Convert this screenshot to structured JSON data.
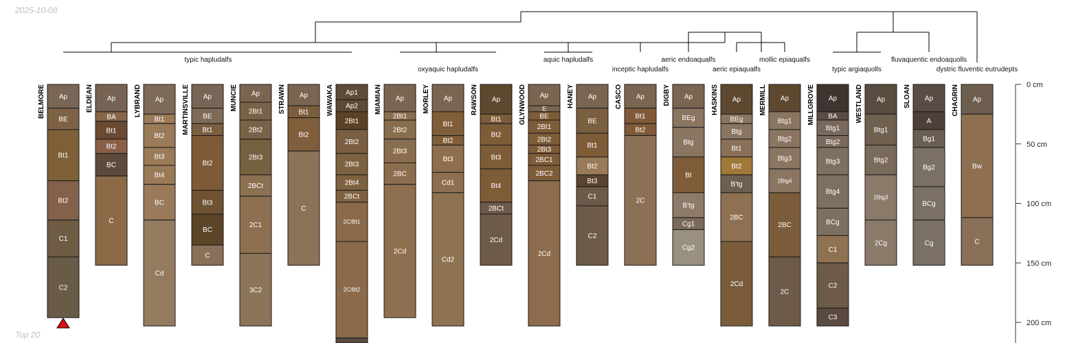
{
  "header": {
    "date": "2025-10-08",
    "footer": "Top 20"
  },
  "chart_data": {
    "type": "soil-profile-sketch",
    "depth_unit": "cm",
    "depth_ticks": [
      0,
      50,
      100,
      150,
      200
    ],
    "depth_tick_labels": [
      "0 cm",
      "50 cm",
      "100 cm",
      "150 cm",
      "200 cm"
    ],
    "depth_max": 218,
    "marker_profile": "BELMORE",
    "profiles": [
      {
        "name": "BELMORE",
        "horizons": [
          {
            "name": "Ap",
            "top": 0,
            "bottom": 20,
            "color": "#7A6656"
          },
          {
            "name": "BE",
            "top": 20,
            "bottom": 38,
            "color": "#7E6246"
          },
          {
            "name": "Bt1",
            "top": 38,
            "bottom": 81,
            "color": "#7D6038"
          },
          {
            "name": "Bt2",
            "top": 81,
            "bottom": 114,
            "color": "#83614A"
          },
          {
            "name": "C1",
            "top": 114,
            "bottom": 145,
            "color": "#6F5C45"
          },
          {
            "name": "C2",
            "top": 145,
            "bottom": 196,
            "color": "#6A5B48"
          }
        ]
      },
      {
        "name": "ELDEAN",
        "horizons": [
          {
            "name": "Ap",
            "top": 0,
            "bottom": 23,
            "color": "#766353"
          },
          {
            "name": "BA",
            "top": 23,
            "bottom": 31,
            "color": "#87664A"
          },
          {
            "name": "Bt1",
            "top": 31,
            "bottom": 46,
            "color": "#6B4A33"
          },
          {
            "name": "Bt2",
            "top": 46,
            "bottom": 58,
            "color": "#8A5E46"
          },
          {
            "name": "BC",
            "top": 58,
            "bottom": 77,
            "color": "#5D4A3A"
          },
          {
            "name": "C",
            "top": 77,
            "bottom": 152,
            "color": "#8C6A48"
          }
        ]
      },
      {
        "name": "LYBRAND",
        "horizons": [
          {
            "name": "Ap",
            "top": 0,
            "bottom": 25,
            "color": "#7E6A58"
          },
          {
            "name": "Bt1",
            "top": 25,
            "bottom": 33,
            "color": "#9A7A58"
          },
          {
            "name": "Bt2",
            "top": 33,
            "bottom": 53,
            "color": "#9A7A58"
          },
          {
            "name": "Bt3",
            "top": 53,
            "bottom": 68,
            "color": "#9B7A57"
          },
          {
            "name": "Bt4",
            "top": 68,
            "bottom": 84,
            "color": "#9A7A57"
          },
          {
            "name": "BC",
            "top": 84,
            "bottom": 114,
            "color": "#9A7A5A"
          },
          {
            "name": "Cd",
            "top": 114,
            "bottom": 203,
            "color": "#947A5F"
          }
        ]
      },
      {
        "name": "MARTINSVILLE",
        "horizons": [
          {
            "name": "Ap",
            "top": 0,
            "bottom": 20,
            "color": "#786555"
          },
          {
            "name": "BE",
            "top": 20,
            "bottom": 33,
            "color": "#7E6A56"
          },
          {
            "name": "Bt1",
            "top": 33,
            "bottom": 43,
            "color": "#7A6040"
          },
          {
            "name": "Bt2",
            "top": 43,
            "bottom": 89,
            "color": "#7E5A38"
          },
          {
            "name": "Bt3",
            "top": 89,
            "bottom": 109,
            "color": "#6E5232"
          },
          {
            "name": "BC",
            "top": 109,
            "bottom": 135,
            "color": "#5B4428"
          },
          {
            "name": "C",
            "top": 135,
            "bottom": 152,
            "color": "#8A7058"
          }
        ]
      },
      {
        "name": "MUNCIE",
        "horizons": [
          {
            "name": "Ap",
            "top": 0,
            "bottom": 15,
            "color": "#7A6550"
          },
          {
            "name": "2Bt1",
            "top": 15,
            "bottom": 30,
            "color": "#7A6248"
          },
          {
            "name": "2Bt2",
            "top": 30,
            "bottom": 46,
            "color": "#7A6248"
          },
          {
            "name": "2Bt3",
            "top": 46,
            "bottom": 76,
            "color": "#75603F"
          },
          {
            "name": "2BCt",
            "top": 76,
            "bottom": 94,
            "color": "#8C7052"
          },
          {
            "name": "2C1",
            "top": 94,
            "bottom": 142,
            "color": "#8E7050"
          },
          {
            "name": "3C2",
            "top": 142,
            "bottom": 203,
            "color": "#8C7458"
          }
        ]
      },
      {
        "name": "STRAWN",
        "horizons": [
          {
            "name": "Ap",
            "top": 0,
            "bottom": 18,
            "color": "#7A6550"
          },
          {
            "name": "Bt1",
            "top": 18,
            "bottom": 28,
            "color": "#7B5D3C"
          },
          {
            "name": "Bt2",
            "top": 28,
            "bottom": 56,
            "color": "#805E3C"
          },
          {
            "name": "C",
            "top": 56,
            "bottom": 152,
            "color": "#8C7358"
          }
        ]
      },
      {
        "name": "WAWAKA",
        "horizons": [
          {
            "name": "Ap1",
            "top": 0,
            "bottom": 13,
            "color": "#5E4A36"
          },
          {
            "name": "Ap2",
            "top": 13,
            "bottom": 23,
            "color": "#5E4A36"
          },
          {
            "name": "2Bt1",
            "top": 23,
            "bottom": 38,
            "color": "#5B4227"
          },
          {
            "name": "2Bt2",
            "top": 38,
            "bottom": 58,
            "color": "#7A5E3F"
          },
          {
            "name": "2Bt3",
            "top": 58,
            "bottom": 76,
            "color": "#7E6141"
          },
          {
            "name": "2Bt4",
            "top": 76,
            "bottom": 89,
            "color": "#7E6141"
          },
          {
            "name": "2BCt",
            "top": 89,
            "bottom": 99,
            "color": "#7F6142"
          },
          {
            "name": "2C/Bt1",
            "top": 99,
            "bottom": 132,
            "color": "#8A6A4A"
          },
          {
            "name": "2C/Bt2",
            "top": 132,
            "bottom": 213,
            "color": "#8A6A4A"
          },
          {
            "name": "",
            "top": 213,
            "bottom": 218,
            "color": "#5A4A40"
          }
        ]
      },
      {
        "name": "MIAMIAN",
        "horizons": [
          {
            "name": "Ap",
            "top": 0,
            "bottom": 23,
            "color": "#7A6550"
          },
          {
            "name": "2Bt1",
            "top": 23,
            "bottom": 30,
            "color": "#8A6D4E"
          },
          {
            "name": "2Bt2",
            "top": 30,
            "bottom": 46,
            "color": "#8A6D4E"
          },
          {
            "name": "2Bt3",
            "top": 46,
            "bottom": 66,
            "color": "#8A6D4E"
          },
          {
            "name": "2BC",
            "top": 66,
            "bottom": 84,
            "color": "#8C6E4E"
          },
          {
            "name": "2Cd",
            "top": 84,
            "bottom": 196,
            "color": "#8E7050"
          }
        ]
      },
      {
        "name": "MORLEY",
        "horizons": [
          {
            "name": "Ap",
            "top": 0,
            "bottom": 23,
            "color": "#7A6550"
          },
          {
            "name": "Bt1",
            "top": 23,
            "bottom": 43,
            "color": "#805E3A"
          },
          {
            "name": "Bt2",
            "top": 43,
            "bottom": 51,
            "color": "#805E3A"
          },
          {
            "name": "Bt3",
            "top": 51,
            "bottom": 74,
            "color": "#8E6E4C"
          },
          {
            "name": "Cd1",
            "top": 74,
            "bottom": 91,
            "color": "#8E7050"
          },
          {
            "name": "Cd2",
            "top": 91,
            "bottom": 203,
            "color": "#8E7252"
          }
        ]
      },
      {
        "name": "RAWSON",
        "horizons": [
          {
            "name": "Ap",
            "top": 0,
            "bottom": 25,
            "color": "#5E4830"
          },
          {
            "name": "Bt1",
            "top": 25,
            "bottom": 33,
            "color": "#7E5C38"
          },
          {
            "name": "Bt2",
            "top": 33,
            "bottom": 51,
            "color": "#7E5C38"
          },
          {
            "name": "Bt3",
            "top": 51,
            "bottom": 71,
            "color": "#7E5C38"
          },
          {
            "name": "Bt4",
            "top": 71,
            "bottom": 99,
            "color": "#7E5C38"
          },
          {
            "name": "2BCt",
            "top": 99,
            "bottom": 109,
            "color": "#6E5A48"
          },
          {
            "name": "2Cd",
            "top": 109,
            "bottom": 152,
            "color": "#6E5A48"
          }
        ]
      },
      {
        "name": "GLYNWOOD",
        "horizons": [
          {
            "name": "Ap",
            "top": 0,
            "bottom": 18,
            "color": "#7A6550"
          },
          {
            "name": "E",
            "top": 18,
            "bottom": 23,
            "color": "#7A6550"
          },
          {
            "name": "BE",
            "top": 23,
            "bottom": 30,
            "color": "#7E5C38"
          },
          {
            "name": "2Bt1",
            "top": 30,
            "bottom": 41,
            "color": "#7E5C38"
          },
          {
            "name": "2Bt2",
            "top": 41,
            "bottom": 51,
            "color": "#7E5C38"
          },
          {
            "name": "2Bt3",
            "top": 51,
            "bottom": 58,
            "color": "#7E5C38"
          },
          {
            "name": "2BC1",
            "top": 58,
            "bottom": 68,
            "color": "#7E5C38"
          },
          {
            "name": "2BC2",
            "top": 68,
            "bottom": 81,
            "color": "#7E5C38"
          },
          {
            "name": "2Cd",
            "top": 81,
            "bottom": 203,
            "color": "#8C6C4C"
          }
        ]
      },
      {
        "name": "HANEY",
        "horizons": [
          {
            "name": "Ap",
            "top": 0,
            "bottom": 20,
            "color": "#7A6550"
          },
          {
            "name": "BE",
            "top": 20,
            "bottom": 41,
            "color": "#7A5E40"
          },
          {
            "name": "Bt1",
            "top": 41,
            "bottom": 61,
            "color": "#7E5C38"
          },
          {
            "name": "Bt2",
            "top": 61,
            "bottom": 76,
            "color": "#9A7A58"
          },
          {
            "name": "Bt3",
            "top": 76,
            "bottom": 86,
            "color": "#5A4430"
          },
          {
            "name": "C1",
            "top": 86,
            "bottom": 102,
            "color": "#6E5A48"
          },
          {
            "name": "C2",
            "top": 102,
            "bottom": 152,
            "color": "#6E5A48"
          }
        ]
      },
      {
        "name": "CASCO",
        "horizons": [
          {
            "name": "Ap",
            "top": 0,
            "bottom": 20,
            "color": "#7A6550"
          },
          {
            "name": "Bt1",
            "top": 20,
            "bottom": 33,
            "color": "#805A38"
          },
          {
            "name": "Bt2",
            "top": 33,
            "bottom": 43,
            "color": "#805A38"
          },
          {
            "name": "2C",
            "top": 43,
            "bottom": 152,
            "color": "#8C7055"
          }
        ]
      },
      {
        "name": "DIGBY",
        "horizons": [
          {
            "name": "Ap",
            "top": 0,
            "bottom": 20,
            "color": "#7A6550"
          },
          {
            "name": "BEg",
            "top": 20,
            "bottom": 36,
            "color": "#8A7560"
          },
          {
            "name": "Btg",
            "top": 36,
            "bottom": 61,
            "color": "#8A7560"
          },
          {
            "name": "Bt",
            "top": 61,
            "bottom": 91,
            "color": "#7E5C38"
          },
          {
            "name": "B'tg",
            "top": 91,
            "bottom": 112,
            "color": "#8E7A68"
          },
          {
            "name": "Cg1",
            "top": 112,
            "bottom": 122,
            "color": "#7A6A5A"
          },
          {
            "name": "Cg2",
            "top": 122,
            "bottom": 152,
            "color": "#9A9080"
          }
        ]
      },
      {
        "name": "HASKINS",
        "horizons": [
          {
            "name": "Ap",
            "top": 0,
            "bottom": 25,
            "color": "#5E4830"
          },
          {
            "name": "BEg",
            "top": 25,
            "bottom": 33,
            "color": "#8A7560"
          },
          {
            "name": "Btg",
            "top": 33,
            "bottom": 46,
            "color": "#8A7560"
          },
          {
            "name": "Bt1",
            "top": 46,
            "bottom": 61,
            "color": "#8A7058"
          },
          {
            "name": "Bt2",
            "top": 61,
            "bottom": 76,
            "color": "#A07838"
          },
          {
            "name": "B'tg",
            "top": 76,
            "bottom": 91,
            "color": "#6E6050"
          },
          {
            "name": "2BC",
            "top": 91,
            "bottom": 132,
            "color": "#8E7052"
          },
          {
            "name": "2Cd",
            "top": 132,
            "bottom": 203,
            "color": "#7A5C3A"
          }
        ]
      },
      {
        "name": "MERMILL",
        "horizons": [
          {
            "name": "Btg1",
            "top": 23,
            "bottom": 38,
            "color": "#8A7560"
          },
          {
            "name": "Btg2",
            "top": 38,
            "bottom": 53,
            "color": "#8A7560"
          },
          {
            "name": "Btg3",
            "top": 53,
            "bottom": 71,
            "color": "#8A7560"
          },
          {
            "name": "2Btg4",
            "top": 71,
            "bottom": 91,
            "color": "#8A7560"
          },
          {
            "name": "2BC",
            "top": 91,
            "bottom": 145,
            "color": "#7A5C3A"
          },
          {
            "name": "2C",
            "top": 145,
            "bottom": 203,
            "color": "#6E5A48"
          }
        ],
        "top_horizon": {
          "name": "Ap",
          "top": 0,
          "bottom": 23,
          "color": "#5E4830"
        }
      },
      {
        "name": "MILLGROVE",
        "horizons": [
          {
            "name": "Ap",
            "top": 0,
            "bottom": 23,
            "color": "#3E3430"
          },
          {
            "name": "BA",
            "top": 23,
            "bottom": 30,
            "color": "#5A4C44"
          },
          {
            "name": "Btg1",
            "top": 30,
            "bottom": 43,
            "color": "#7A6A5C"
          },
          {
            "name": "Btg2",
            "top": 43,
            "bottom": 53,
            "color": "#7A6A5C"
          },
          {
            "name": "Btg3",
            "top": 53,
            "bottom": 76,
            "color": "#7E7060"
          },
          {
            "name": "Btg4",
            "top": 76,
            "bottom": 104,
            "color": "#7E7060"
          },
          {
            "name": "BCg",
            "top": 104,
            "bottom": 127,
            "color": "#7E7060"
          },
          {
            "name": "C1",
            "top": 127,
            "bottom": 150,
            "color": "#8E7252"
          },
          {
            "name": "C2",
            "top": 150,
            "bottom": 188,
            "color": "#6E5A48"
          },
          {
            "name": "C3",
            "top": 188,
            "bottom": 203,
            "color": "#5A4A40"
          }
        ]
      },
      {
        "name": "WESTLAND",
        "horizons": [
          {
            "name": "Ap",
            "top": 0,
            "bottom": 25,
            "color": "#5A4C3E"
          },
          {
            "name": "Btg1",
            "top": 25,
            "bottom": 51,
            "color": "#706050"
          },
          {
            "name": "Btg2",
            "top": 51,
            "bottom": 76,
            "color": "#7A6A5A"
          },
          {
            "name": "2Btg3",
            "top": 76,
            "bottom": 114,
            "color": "#8A7A6A"
          },
          {
            "name": "2Cg",
            "top": 114,
            "bottom": 152,
            "color": "#8A7A6A"
          }
        ]
      },
      {
        "name": "SLOAN",
        "horizons": [
          {
            "name": "Ap",
            "top": 0,
            "bottom": 23,
            "color": "#5A4C44"
          },
          {
            "name": "A",
            "top": 23,
            "bottom": 38,
            "color": "#4E4038"
          },
          {
            "name": "Bg1",
            "top": 38,
            "bottom": 53,
            "color": "#6A5E52"
          },
          {
            "name": "Bg2",
            "top": 53,
            "bottom": 86,
            "color": "#7A7064"
          },
          {
            "name": "BCg",
            "top": 86,
            "bottom": 114,
            "color": "#7A7064"
          },
          {
            "name": "Cg",
            "top": 114,
            "bottom": 152,
            "color": "#7A7064"
          }
        ]
      },
      {
        "name": "CHAGRIN",
        "horizons": [
          {
            "name": "Ap",
            "top": 0,
            "bottom": 25,
            "color": "#6E5E50"
          },
          {
            "name": "Bw",
            "top": 25,
            "bottom": 112,
            "color": "#8E7050"
          },
          {
            "name": "C",
            "top": 112,
            "bottom": 152,
            "color": "#8A7058"
          }
        ]
      }
    ],
    "taxon_labels": [
      "typic hapludalfs",
      "oxyaquic hapludalfs",
      "aquic hapludalfs",
      "inceptic hapludalfs",
      "aeric endoaqualfs",
      "aeric epiaqualfs",
      "mollic epiaqualfs",
      "typic argiaquolls",
      "fluvaquentic endoaquolls",
      "dystric fluventic eutrudepts"
    ]
  }
}
